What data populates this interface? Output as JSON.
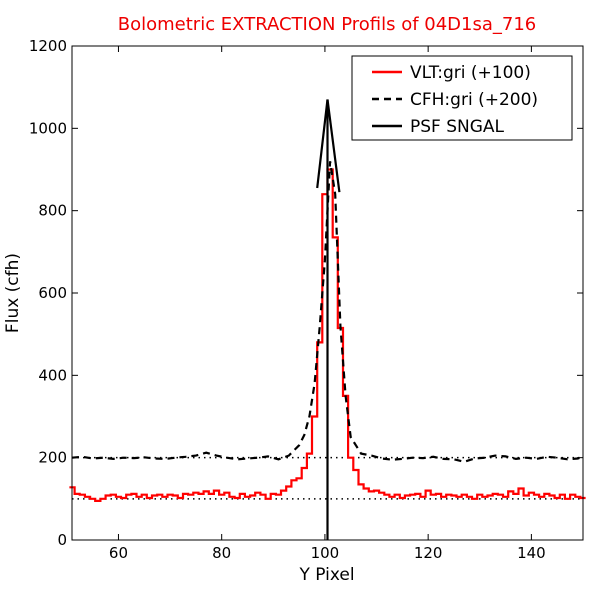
{
  "chart_data": {
    "type": "line",
    "title": "Bolometric EXTRACTION Profils of 04D1sa_716",
    "xlabel": "Y Pixel",
    "ylabel": "Flux (cfh)",
    "xlim": [
      51,
      150
    ],
    "ylim": [
      0,
      1200
    ],
    "xticks": [
      60,
      80,
      100,
      120,
      140
    ],
    "yticks": [
      0,
      200,
      400,
      600,
      800,
      1000,
      1200
    ],
    "legend_position": "top-right",
    "grid": false,
    "reference_lines": [
      {
        "y": 100,
        "style": "dotted",
        "color": "#000000"
      },
      {
        "y": 200,
        "style": "dotted",
        "color": "#000000"
      }
    ],
    "series": [
      {
        "name": "VLT:gri (+100)",
        "color": "#ff0000",
        "style": "steps",
        "x": [
          51,
          52,
          53,
          54,
          55,
          56,
          57,
          58,
          59,
          60,
          61,
          62,
          63,
          64,
          65,
          66,
          67,
          68,
          69,
          70,
          71,
          72,
          73,
          74,
          75,
          76,
          77,
          78,
          79,
          80,
          81,
          82,
          83,
          84,
          85,
          86,
          87,
          88,
          89,
          90,
          91,
          92,
          93,
          94,
          95,
          96,
          97,
          98,
          99,
          100,
          101,
          102,
          103,
          104,
          105,
          106,
          107,
          108,
          109,
          110,
          111,
          112,
          113,
          114,
          115,
          116,
          117,
          118,
          119,
          120,
          121,
          122,
          123,
          124,
          125,
          126,
          127,
          128,
          129,
          130,
          131,
          132,
          133,
          134,
          135,
          136,
          137,
          138,
          139,
          140,
          141,
          142,
          143,
          144,
          145,
          146,
          147,
          148,
          149,
          150
        ],
        "y": [
          128,
          112,
          110,
          105,
          100,
          95,
          100,
          108,
          110,
          105,
          102,
          110,
          112,
          105,
          110,
          102,
          108,
          110,
          105,
          110,
          108,
          102,
          112,
          110,
          115,
          112,
          118,
          112,
          120,
          110,
          115,
          105,
          102,
          112,
          105,
          108,
          115,
          110,
          100,
          112,
          110,
          120,
          130,
          145,
          150,
          175,
          210,
          300,
          480,
          840,
          900,
          735,
          515,
          350,
          200,
          170,
          135,
          125,
          118,
          120,
          115,
          110,
          105,
          110,
          102,
          108,
          110,
          112,
          105,
          120,
          110,
          112,
          105,
          110,
          108,
          105,
          110,
          105,
          100,
          110,
          105,
          108,
          112,
          110,
          105,
          118,
          112,
          125,
          108,
          115,
          110,
          105,
          112,
          108,
          102,
          110,
          100,
          110,
          105,
          102
        ]
      },
      {
        "name": "CFH:gri (+200)",
        "color": "#000000",
        "style": "dashed",
        "x": [
          51,
          53,
          55,
          57,
          59,
          61,
          63,
          65,
          67,
          69,
          71,
          73,
          75,
          77,
          79,
          81,
          83,
          85,
          87,
          89,
          91,
          93,
          95,
          96,
          97,
          98,
          99,
          100,
          101,
          102,
          103,
          104,
          105,
          106,
          107,
          109,
          111,
          113,
          115,
          117,
          119,
          121,
          123,
          125,
          127,
          129,
          131,
          133,
          135,
          137,
          139,
          141,
          143,
          145,
          147,
          149,
          150
        ],
        "y": [
          200,
          202,
          198,
          200,
          197,
          200,
          199,
          201,
          198,
          197,
          200,
          202,
          205,
          212,
          205,
          200,
          196,
          198,
          200,
          203,
          196,
          205,
          230,
          255,
          300,
          380,
          520,
          680,
          920,
          840,
          520,
          350,
          250,
          230,
          210,
          205,
          198,
          195,
          197,
          200,
          199,
          202,
          197,
          196,
          190,
          198,
          200,
          205,
          203,
          197,
          200,
          197,
          202,
          200,
          196,
          198,
          202
        ]
      },
      {
        "name": "PSF SNGAL",
        "color": "#000000",
        "style": "solid",
        "x": [
          98.5,
          100.5,
          102.8
        ],
        "y": [
          855,
          1070,
          845
        ],
        "vertical_line_x": 100.5
      }
    ]
  }
}
